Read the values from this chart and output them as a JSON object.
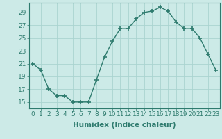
{
  "x": [
    0,
    1,
    2,
    3,
    4,
    5,
    6,
    7,
    8,
    9,
    10,
    11,
    12,
    13,
    14,
    15,
    16,
    17,
    18,
    19,
    20,
    21,
    22,
    23
  ],
  "y": [
    21,
    20,
    17,
    16,
    16,
    15,
    15,
    15,
    18.5,
    22,
    24.5,
    26.5,
    26.5,
    28,
    29,
    29.2,
    29.8,
    29.2,
    27.5,
    26.5,
    26.5,
    25,
    22.5,
    20
  ],
  "line_color": "#2e7b6e",
  "marker": "+",
  "marker_size": 4,
  "line_width": 1.0,
  "bg_color": "#cceae7",
  "grid_color": "#aad4d0",
  "tick_label_color": "#2e7b6e",
  "xlabel": "Humidex (Indice chaleur)",
  "xlabel_color": "#2e7b6e",
  "xlabel_fontsize": 7.5,
  "yticks": [
    15,
    17,
    19,
    21,
    23,
    25,
    27,
    29
  ],
  "ylim": [
    14,
    30.5
  ],
  "xlim": [
    -0.5,
    23.5
  ],
  "tick_fontsize": 6.5
}
